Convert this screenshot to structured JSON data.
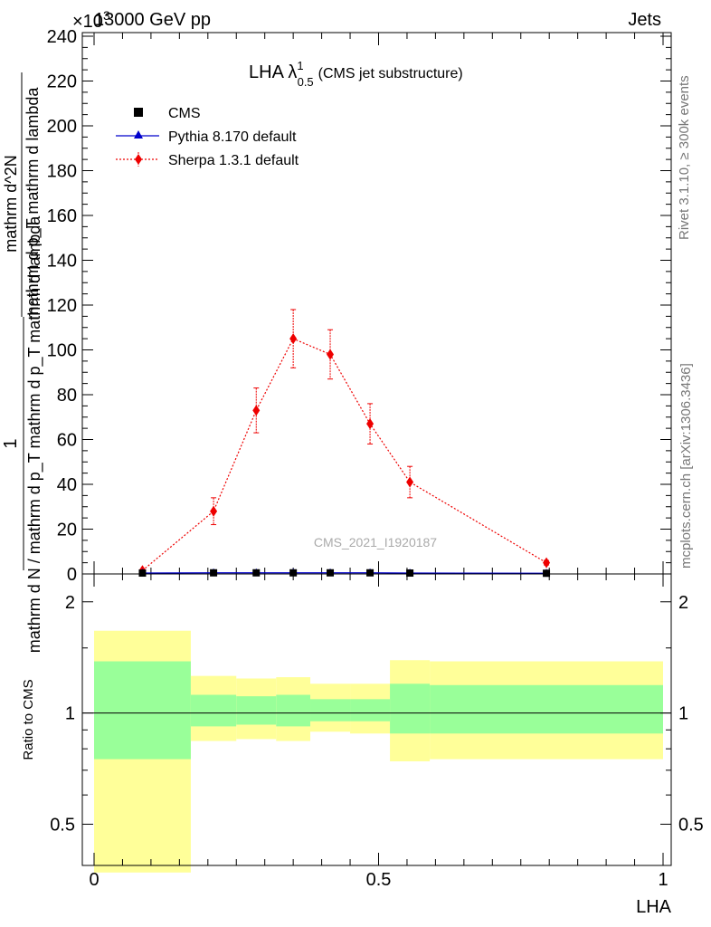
{
  "header": {
    "left": "13000 GeV pp",
    "right": "Jets",
    "exponent": "×10^3"
  },
  "side_labels": {
    "rivet": "Rivet 3.1.10, ≥ 300k events",
    "mcplots": "mcplots.cern.ch [arXiv:1306.3436]"
  },
  "chart_data": [
    {
      "type": "scatter",
      "title": "LHA λ^1_0.5 (CMS jet substructure)",
      "title_main": "LHA λ",
      "title_sup": "1",
      "title_sub": "0.5",
      "title_tail": "(CMS jet substructure)",
      "watermark": "CMS_2021_I1920187",
      "xlabel": "LHA",
      "ylabel_num": "1",
      "ylabel_den": "mathrm d N / mathrm d p_T mathrm d p_T mathrm d lambda",
      "ylabel_sup_num": "mathrm d^2N",
      "ylabel_sup_den": "mathrm d p_T mathrm d lambda",
      "xlim": [
        -0.02,
        1.02
      ],
      "ylim": [
        0,
        240
      ],
      "yscale_note": "×10^3",
      "y_ticks": [
        "0",
        "20",
        "40",
        "60",
        "80",
        "100",
        "120",
        "140",
        "160",
        "180",
        "200",
        "220",
        "240"
      ],
      "legend_position": "top-left",
      "series": [
        {
          "name": "CMS",
          "color": "#000000",
          "marker": "square",
          "x": [
            0.085,
            0.21,
            0.285,
            0.35,
            0.415,
            0.485,
            0.555,
            0.795
          ],
          "y": [
            0.4,
            0.5,
            0.5,
            0.5,
            0.5,
            0.5,
            0.4,
            0.3
          ]
        },
        {
          "name": "Pythia 8.170 default",
          "color": "#0000cc",
          "marker": "triangle",
          "x": [
            0.085,
            0.21,
            0.285,
            0.35,
            0.415,
            0.485,
            0.555,
            0.795
          ],
          "y": [
            0.4,
            0.5,
            0.5,
            0.5,
            0.5,
            0.5,
            0.4,
            0.3
          ]
        },
        {
          "name": "Sherpa 1.3.1 default",
          "color": "#ee0000",
          "marker": "diamond",
          "x": [
            0.085,
            0.21,
            0.285,
            0.35,
            0.415,
            0.485,
            0.555,
            0.795
          ],
          "y": [
            1.5,
            28,
            73,
            105,
            98,
            67,
            41,
            5
          ],
          "err": [
            0.5,
            6,
            10,
            13,
            11,
            9,
            7,
            1
          ]
        }
      ]
    },
    {
      "type": "area",
      "ylabel": "Ratio to CMS",
      "xlabel": "LHA",
      "xlim": [
        -0.02,
        1.02
      ],
      "ylim": [
        0.4,
        2.3
      ],
      "yscale": "log",
      "y_ticks": [
        "0.5",
        "1",
        "2"
      ],
      "x_ticks": [
        "0",
        "0.5",
        "1"
      ],
      "reference_line": 1,
      "bins": [
        {
          "x0": 0.0,
          "x1": 0.17,
          "green": [
            0.75,
            1.38
          ],
          "yellow": [
            0.37,
            1.67
          ]
        },
        {
          "x0": 0.17,
          "x1": 0.25,
          "green": [
            0.92,
            1.12
          ],
          "yellow": [
            0.84,
            1.26
          ]
        },
        {
          "x0": 0.25,
          "x1": 0.32,
          "green": [
            0.93,
            1.11
          ],
          "yellow": [
            0.85,
            1.24
          ]
        },
        {
          "x0": 0.32,
          "x1": 0.38,
          "green": [
            0.92,
            1.12
          ],
          "yellow": [
            0.84,
            1.25
          ]
        },
        {
          "x0": 0.38,
          "x1": 0.45,
          "green": [
            0.95,
            1.09
          ],
          "yellow": [
            0.89,
            1.2
          ]
        },
        {
          "x0": 0.45,
          "x1": 0.52,
          "green": [
            0.95,
            1.09
          ],
          "yellow": [
            0.88,
            1.2
          ]
        },
        {
          "x0": 0.52,
          "x1": 0.59,
          "green": [
            0.88,
            1.2
          ],
          "yellow": [
            0.74,
            1.39
          ]
        },
        {
          "x0": 0.59,
          "x1": 1.0,
          "green": [
            0.88,
            1.19
          ],
          "yellow": [
            0.75,
            1.38
          ]
        }
      ],
      "colors": {
        "green": "#99ff99",
        "yellow": "#ffff99"
      }
    }
  ]
}
